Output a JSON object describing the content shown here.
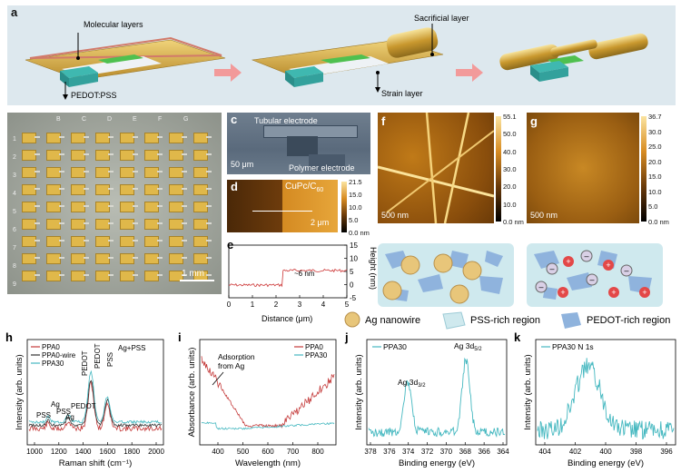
{
  "panel_labels": {
    "a": "a",
    "b": "b",
    "c": "c",
    "d": "d",
    "e": "e",
    "f": "f",
    "g": "g",
    "h": "h",
    "i": "i",
    "j": "j",
    "k": "k"
  },
  "panel_a": {
    "molecular_layers": "Molecular layers",
    "pedot_pss": "PEDOT:PSS",
    "sacrificial_layer": "Sacrificial layer",
    "strain_layer": "Strain layer"
  },
  "panel_b": {
    "columns": [
      "B",
      "C",
      "D",
      "E",
      "F",
      "G"
    ],
    "rows": [
      "1",
      "2",
      "3",
      "4",
      "5",
      "6",
      "7",
      "8",
      "9"
    ],
    "scale_bar": "1 mm"
  },
  "panel_c": {
    "tubular_electrode": "Tubular electrode",
    "polymer_electrode": "Polymer electrode",
    "scale_bar": "50 μm"
  },
  "panel_d": {
    "material": "CuPc/C",
    "material_sub": "60",
    "scale_bar": "2 μm",
    "colorbar_ticks": [
      "21.5",
      "15.0",
      "10.0",
      "5.0",
      "0.0 nm"
    ]
  },
  "panel_e": {
    "annotation": "~6 nm",
    "xlabel": "Distance (μm)",
    "ylabel": "Height (nm)",
    "xticks": [
      "0",
      "1",
      "2",
      "3",
      "4",
      "5"
    ],
    "yticks": [
      "15",
      "10",
      "5",
      "0",
      "-5"
    ]
  },
  "panel_f": {
    "scale_bar": "500 nm",
    "colorbar_ticks": [
      "55.1",
      "50.0",
      "40.0",
      "30.0",
      "20.0",
      "10.0",
      "0.0 nm"
    ]
  },
  "panel_g": {
    "scale_bar": "500 nm",
    "colorbar_ticks": [
      "36.7",
      "30.0",
      "25.0",
      "20.0",
      "15.0",
      "10.0",
      "5.0",
      "0.0 nm"
    ]
  },
  "legend": {
    "ag_nanowire": "Ag nanowire",
    "pss_region": "PSS-rich region",
    "pedot_region": "PEDOT-rich region"
  },
  "colors": {
    "ppa0": "#c43a3a",
    "ppa0_wire": "#333333",
    "ppa30": "#45b8c0",
    "gold": "#d9b24a",
    "pss": "#cfe9ee",
    "pedot": "#8fb3dd"
  },
  "chart_data": [
    {
      "id": "h",
      "type": "line",
      "xlabel": "Raman shift (cm⁻¹)",
      "ylabel": "Intensity (arb. units)",
      "xlim": [
        950,
        2000
      ],
      "xticks": [
        "1000",
        "1200",
        "1400",
        "1600",
        "1800",
        "2000"
      ],
      "series": [
        {
          "name": "PPA0"
        },
        {
          "name": "PPA0-wire"
        },
        {
          "name": "PPA30"
        }
      ],
      "annotations": [
        "PSS",
        "Ag",
        "PSS",
        "Ag",
        "PEDOT",
        "PEDOT",
        "PEDOT",
        "PSS",
        "Ag+PSS"
      ]
    },
    {
      "id": "i",
      "type": "line",
      "xlabel": "Wavelength (nm)",
      "ylabel": "Absorbance (arb. units)",
      "xlim": [
        350,
        800
      ],
      "xticks": [
        "400",
        "500",
        "600",
        "700",
        "800"
      ],
      "series": [
        {
          "name": "PPA0"
        },
        {
          "name": "PPA30"
        }
      ],
      "annotation": "Adsorption from Ag"
    },
    {
      "id": "j",
      "type": "line",
      "xlabel": "Binding energy (eV)",
      "ylabel": "Intensity (arb. units)",
      "xlim": [
        378,
        364
      ],
      "xticks": [
        "378",
        "376",
        "374",
        "372",
        "370",
        "368",
        "366",
        "364"
      ],
      "series": [
        {
          "name": "PPA30"
        }
      ],
      "peaks": [
        {
          "label": "Ag 3d",
          "sub": "3/2",
          "x": 374
        },
        {
          "label": "Ag 3d",
          "sub": "5/2",
          "x": 368
        }
      ]
    },
    {
      "id": "k",
      "type": "line",
      "xlabel": "Binding energy (eV)",
      "ylabel": "Intensity (arb. units)",
      "xlim": [
        405,
        395
      ],
      "xticks": [
        "404",
        "402",
        "400",
        "398",
        "396"
      ],
      "series": [
        {
          "name": "PPA30",
          "label": "PPA30  N 1s"
        }
      ]
    }
  ]
}
